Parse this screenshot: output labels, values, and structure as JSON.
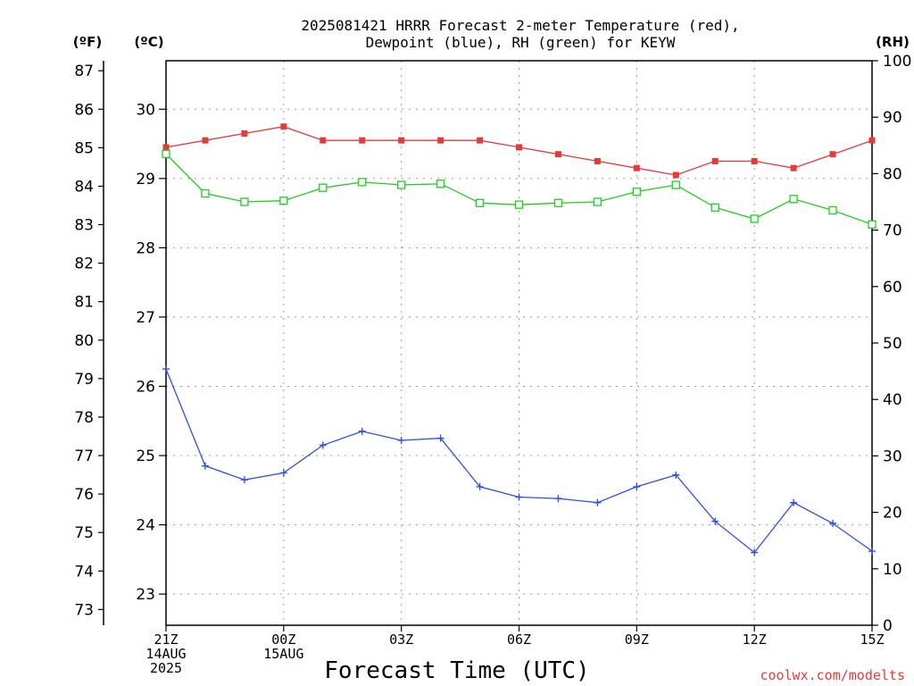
{
  "chart_data": {
    "type": "line",
    "title": "2025081421 HRRR Forecast 2-meter Temperature (red),",
    "subtitle": "Dewpoint (blue), RH (green) for KEYW",
    "xlabel": "Forecast Time (UTC)",
    "unit_labels": {
      "fahrenheit": "(ºF)",
      "celsius": "(ºC)",
      "rh": "(RH)"
    },
    "watermark": "coolwx.com/modelts",
    "x": [
      0,
      1,
      2,
      3,
      4,
      5,
      6,
      7,
      8,
      9,
      10,
      11,
      12,
      13,
      14,
      15,
      16,
      17,
      18
    ],
    "xlim": [
      0,
      18
    ],
    "x_ticks": [
      {
        "x": 0,
        "lines": [
          "21Z",
          "14AUG",
          "2025"
        ]
      },
      {
        "x": 3,
        "lines": [
          "00Z",
          "15AUG"
        ]
      },
      {
        "x": 6,
        "lines": [
          "03Z"
        ]
      },
      {
        "x": 9,
        "lines": [
          "06Z"
        ]
      },
      {
        "x": 12,
        "lines": [
          "09Z"
        ]
      },
      {
        "x": 15,
        "lines": [
          "12Z"
        ]
      },
      {
        "x": 18,
        "lines": [
          "15Z"
        ]
      }
    ],
    "celsius_axis": {
      "ylim": [
        22.55,
        30.7
      ],
      "ticks": [
        23,
        24,
        25,
        26,
        27,
        28,
        29,
        30
      ]
    },
    "fahrenheit_axis": {
      "ylim": [
        72.59,
        87.26
      ],
      "ticks": [
        73,
        74,
        75,
        76,
        77,
        78,
        79,
        80,
        81,
        82,
        83,
        84,
        85,
        86,
        87
      ]
    },
    "rh_axis": {
      "ylim": [
        0,
        100
      ],
      "ticks": [
        0,
        10,
        20,
        30,
        40,
        50,
        60,
        70,
        80,
        90,
        100
      ]
    },
    "grid": true,
    "series": [
      {
        "name": "Temperature",
        "axis": "celsius",
        "color": "#e83838",
        "marker": "filled-square",
        "values": [
          29.45,
          29.55,
          29.65,
          29.75,
          29.55,
          29.55,
          29.55,
          29.55,
          29.55,
          29.45,
          29.35,
          29.25,
          29.15,
          29.05,
          29.25,
          29.25,
          29.15,
          29.35,
          29.55
        ]
      },
      {
        "name": "Dewpoint",
        "axis": "celsius",
        "color": "#2f4fe0",
        "marker": "plus",
        "values": [
          26.25,
          24.85,
          24.65,
          24.75,
          25.15,
          25.35,
          25.22,
          25.25,
          24.55,
          24.4,
          24.38,
          24.32,
          24.55,
          24.72,
          24.05,
          23.6,
          24.32,
          24.02,
          23.62
        ]
      },
      {
        "name": "RH",
        "axis": "rh",
        "color": "#22cc22",
        "marker": "open-square",
        "values": [
          83.5,
          76.5,
          75.0,
          75.2,
          77.5,
          78.5,
          78.0,
          78.2,
          74.8,
          74.5,
          74.8,
          75.0,
          76.8,
          78.0,
          74.0,
          72.0,
          75.5,
          73.5,
          71.0
        ]
      }
    ]
  }
}
